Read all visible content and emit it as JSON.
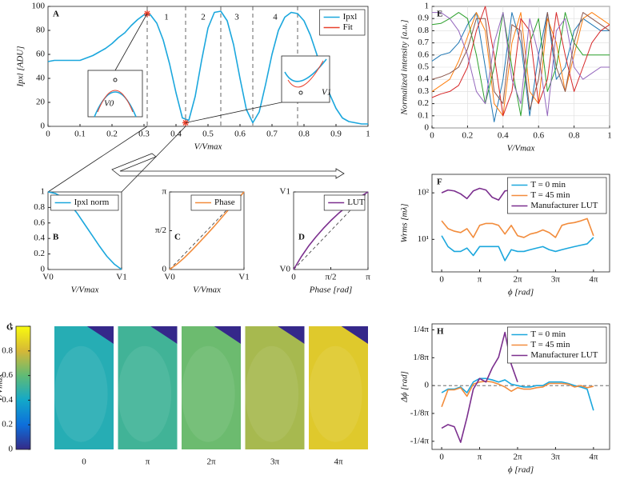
{
  "chart_data": [
    {
      "type": "line",
      "label": "A",
      "xlabel": "V/Vmax",
      "ylabel": "Ipxl [ADU]",
      "x": [
        0,
        0.02,
        0.04,
        0.06,
        0.08,
        0.1,
        0.12,
        0.14,
        0.16,
        0.18,
        0.2,
        0.22,
        0.24,
        0.26,
        0.28,
        0.3,
        0.32,
        0.34,
        0.36,
        0.38,
        0.4,
        0.42,
        0.44,
        0.46,
        0.48,
        0.5,
        0.52,
        0.54,
        0.56,
        0.58,
        0.6,
        0.62,
        0.64,
        0.66,
        0.68,
        0.7,
        0.72,
        0.74,
        0.76,
        0.78,
        0.8,
        0.82,
        0.84,
        0.86,
        0.88,
        0.9,
        0.92,
        0.94,
        0.96,
        0.98,
        1
      ],
      "series": [
        {
          "name": "Ipxl",
          "color": "#1ba7dd",
          "values": [
            54,
            55,
            55,
            55,
            55,
            55,
            57,
            59,
            62,
            65,
            69,
            74,
            78,
            84,
            89,
            93,
            93,
            86,
            72,
            52,
            28,
            7,
            5,
            25,
            55,
            82,
            95,
            96,
            88,
            68,
            40,
            14,
            3,
            12,
            35,
            60,
            80,
            91,
            95,
            94,
            88,
            76,
            60,
            42,
            27,
            15,
            7,
            4,
            3,
            2,
            2
          ]
        },
        {
          "name": "Fit",
          "color": "#e8412c",
          "marker": "star",
          "x": [
            0.31,
            0.43
          ],
          "values": [
            94,
            3
          ]
        }
      ],
      "xlim": [
        0,
        1
      ],
      "xticks": [
        0,
        0.1,
        0.2,
        0.3,
        0.4,
        0.5,
        0.6,
        0.7,
        0.8,
        0.9,
        1
      ],
      "ylim": [
        0,
        100
      ],
      "yticks": [
        0,
        20,
        40,
        60,
        80,
        100
      ],
      "vlines": [
        0.31,
        0.43,
        0.54,
        0.64,
        0.78
      ],
      "regions": [
        "1",
        "2",
        "3",
        "4"
      ],
      "inset_labels": [
        "V0",
        "V1"
      ],
      "legend": "upper right"
    },
    {
      "type": "line",
      "label": "E",
      "xlabel": "V/Vmax",
      "ylabel": "Normalized intensity [a.u.]",
      "x": [
        0,
        0.05,
        0.1,
        0.15,
        0.2,
        0.25,
        0.3,
        0.35,
        0.4,
        0.45,
        0.5,
        0.55,
        0.6,
        0.65,
        0.7,
        0.75,
        0.8,
        0.85,
        0.9,
        0.95,
        1
      ],
      "series": [
        {
          "color": "#1f77b4",
          "values": [
            0.55,
            0.6,
            0.62,
            0.7,
            0.85,
            0.95,
            0.5,
            0.05,
            0.4,
            0.95,
            0.7,
            0.1,
            0.6,
            0.95,
            0.4,
            0.5,
            0.8,
            0.9,
            0.85,
            0.8,
            0.8
          ]
        },
        {
          "color": "#ff7f0e",
          "values": [
            0.3,
            0.35,
            0.4,
            0.55,
            0.75,
            0.95,
            0.8,
            0.2,
            0.1,
            0.7,
            0.95,
            0.3,
            0.2,
            0.9,
            0.7,
            0.3,
            0.6,
            0.9,
            0.95,
            0.9,
            0.85
          ]
        },
        {
          "color": "#2ca02c",
          "values": [
            0.85,
            0.86,
            0.9,
            0.95,
            0.9,
            0.6,
            0.2,
            0.5,
            0.95,
            0.5,
            0.1,
            0.7,
            0.9,
            0.3,
            0.5,
            0.95,
            0.7,
            0.6,
            0.6,
            0.6,
            0.6
          ]
        },
        {
          "color": "#d62728",
          "values": [
            0.25,
            0.28,
            0.3,
            0.35,
            0.5,
            0.8,
            1.0,
            0.6,
            0.1,
            0.3,
            0.9,
            0.8,
            0.2,
            0.4,
            0.95,
            0.6,
            0.3,
            0.5,
            0.7,
            0.8,
            0.85
          ]
        },
        {
          "color": "#9467bd",
          "values": [
            0.95,
            0.95,
            0.9,
            0.8,
            0.6,
            0.3,
            0.2,
            0.7,
            0.95,
            0.4,
            0.2,
            0.9,
            0.6,
            0.1,
            0.8,
            0.9,
            0.5,
            0.4,
            0.45,
            0.5,
            0.5
          ]
        },
        {
          "color": "#8c564b",
          "values": [
            0.4,
            0.42,
            0.45,
            0.5,
            0.65,
            0.9,
            0.9,
            0.3,
            0.2,
            0.85,
            0.8,
            0.15,
            0.4,
            0.95,
            0.5,
            0.3,
            0.7,
            0.95,
            0.9,
            0.85,
            0.8
          ]
        }
      ],
      "xlim": [
        0,
        1
      ],
      "xticks": [
        0,
        0.2,
        0.4,
        0.6,
        0.8,
        1
      ],
      "ylim": [
        0,
        1
      ],
      "yticks": [
        0,
        0.1,
        0.2,
        0.3,
        0.4,
        0.5,
        0.6,
        0.7,
        0.8,
        0.9,
        1
      ],
      "grid": true
    },
    {
      "type": "line",
      "label": "B",
      "xlabel": "V/Vmax",
      "x": [
        0,
        0.1,
        0.2,
        0.3,
        0.4,
        0.5,
        0.6,
        0.7,
        0.8,
        0.9,
        1
      ],
      "series": [
        {
          "name": "Ipxl norm",
          "color": "#1ba7dd",
          "values": [
            1,
            0.98,
            0.93,
            0.84,
            0.72,
            0.58,
            0.44,
            0.3,
            0.17,
            0.07,
            0
          ]
        }
      ],
      "xlim": [
        0,
        1
      ],
      "xticks": [
        {
          "value": 0,
          "label": "V0"
        },
        {
          "value": 1,
          "label": "V1"
        }
      ],
      "ylim": [
        0,
        1
      ],
      "yticks": [
        0,
        0.2,
        0.4,
        0.6,
        0.8,
        1
      ],
      "legend": "upper right"
    },
    {
      "type": "line",
      "label": "C",
      "xlabel": "V/Vmax",
      "x": [
        0,
        0.1,
        0.2,
        0.3,
        0.4,
        0.5,
        0.6,
        0.7,
        0.8,
        0.9,
        1
      ],
      "series": [
        {
          "name": "Phase",
          "color": "#f28c3c",
          "values": [
            0,
            0.22,
            0.48,
            0.78,
            1.1,
            1.42,
            1.75,
            2.1,
            2.45,
            2.8,
            3.14
          ]
        }
      ],
      "xlim": [
        0,
        1
      ],
      "xticks": [
        {
          "value": 0,
          "label": "V0"
        },
        {
          "value": 1,
          "label": "V1"
        }
      ],
      "ylim": [
        0,
        3.1416
      ],
      "yticks": [
        0,
        {
          "value": 1.5708,
          "label": "π/2"
        },
        {
          "value": 3.1416,
          "label": "π"
        }
      ],
      "diagonal": true,
      "legend": "upper right"
    },
    {
      "type": "line",
      "label": "D",
      "xlabel": "Phase [rad]",
      "x": [
        0,
        0.314,
        0.628,
        0.942,
        1.257,
        1.571,
        1.885,
        2.199,
        2.513,
        2.827,
        3.142
      ],
      "series": [
        {
          "name": "LUT",
          "color": "#7b2f8e",
          "values": [
            0,
            0.16,
            0.3,
            0.42,
            0.53,
            0.63,
            0.72,
            0.8,
            0.87,
            0.94,
            1
          ]
        }
      ],
      "xlim": [
        0,
        3.1416
      ],
      "xticks": [
        0,
        {
          "value": 1.5708,
          "label": "π/2"
        },
        {
          "value": 3.1416,
          "label": "π"
        }
      ],
      "ylim": [
        0,
        1
      ],
      "yticks": [
        {
          "value": 0,
          "label": "V0"
        },
        {
          "value": 1,
          "label": "V1"
        }
      ],
      "diagonal": true,
      "legend": "upper right"
    },
    {
      "type": "line",
      "label": "F",
      "xlabel": "ϕ [rad]",
      "ylabel": "Wrms [mλ]",
      "yscale": "log",
      "x": [
        0,
        0.5236,
        1.0472,
        1.5708,
        2.0944,
        2.618,
        3.1416,
        3.6652,
        4.1888,
        4.7124,
        5.236,
        5.7596,
        6.2832,
        6.8068,
        7.3304,
        7.854,
        8.3776,
        8.9012,
        9.4248,
        9.9484,
        10.472,
        10.9956,
        11.5192,
        12.0428,
        12.5664
      ],
      "series": [
        {
          "name": "T = 0 min",
          "color": "#1ba7dd",
          "values": [
            12,
            7,
            5.5,
            5.5,
            6.5,
            4.5,
            7,
            7,
            7,
            7,
            3.5,
            6,
            5.5,
            5.5,
            6,
            6.5,
            7,
            6,
            5.5,
            6,
            6.5,
            7,
            7.5,
            8,
            11
          ]
        },
        {
          "name": "T = 45 min",
          "color": "#f28c3c",
          "values": [
            25,
            17,
            15,
            14,
            17,
            11,
            20,
            22,
            22,
            20,
            13,
            20,
            12,
            11,
            13,
            14,
            16,
            14,
            11,
            20,
            22,
            23,
            25,
            28,
            12
          ]
        },
        {
          "name": "Manufacturer LUT",
          "color": "#7b2f8e",
          "values": [
            100,
            115,
            110,
            95,
            75,
            110,
            125,
            115,
            80,
            70,
            110,
            115,
            100,
            null,
            null,
            null,
            null,
            null,
            null,
            null,
            null,
            null,
            null,
            null,
            null
          ]
        }
      ],
      "xlim": [
        -0.8,
        13.9
      ],
      "xticks": [
        0,
        {
          "value": 3.1416,
          "label": "π"
        },
        {
          "value": 6.2832,
          "label": "2π"
        },
        {
          "value": 9.4248,
          "label": "3π"
        },
        {
          "value": 12.5664,
          "label": "4π"
        }
      ],
      "ylim": [
        2,
        250
      ],
      "yticks": [
        {
          "value": 10,
          "label": "10¹"
        },
        {
          "value": 100,
          "label": "10²"
        }
      ],
      "legend": "upper right"
    },
    {
      "type": "heatmap",
      "label": "G",
      "ylabel": "V/Vmax",
      "categories": [
        "0",
        "π",
        "2π",
        "3π",
        "4π"
      ],
      "values": [
        0.45,
        0.52,
        0.62,
        0.72,
        0.85
      ],
      "ylim": [
        0,
        1
      ],
      "yticks": [
        0,
        0.2,
        0.4,
        0.6,
        0.8,
        1
      ]
    },
    {
      "type": "line",
      "label": "H",
      "xlabel": "ϕ [rad]",
      "ylabel": "Δϕ [rad]",
      "x": [
        0,
        0.5236,
        1.0472,
        1.5708,
        2.0944,
        2.618,
        3.1416,
        3.6652,
        4.1888,
        4.7124,
        5.236,
        5.7596,
        6.2832,
        6.8068,
        7.3304,
        7.854,
        8.3776,
        8.9012,
        9.4248,
        9.9484,
        10.472,
        10.9956,
        11.5192,
        12.0428,
        12.5664
      ],
      "series": [
        {
          "name": "T = 0 min",
          "color": "#1ba7dd",
          "values": [
            -0.1,
            -0.05,
            -0.05,
            -0.02,
            -0.1,
            0.05,
            0.1,
            0.1,
            0.08,
            0.05,
            0.08,
            0.02,
            0,
            -0.02,
            -0.02,
            0,
            0,
            0.05,
            0.05,
            0.05,
            0.03,
            0,
            -0.02,
            -0.05,
            -0.35
          ]
        },
        {
          "name": "T = 45 min",
          "color": "#f28c3c",
          "values": [
            -0.3,
            -0.06,
            -0.06,
            -0.03,
            -0.15,
            0.02,
            0.05,
            0.06,
            0.05,
            0.02,
            -0.02,
            -0.08,
            -0.03,
            -0.05,
            -0.05,
            -0.03,
            -0.02,
            0.03,
            0.03,
            0.03,
            0.02,
            -0.02,
            0,
            -0.03,
            -0.01
          ]
        },
        {
          "name": "Manufacturer LUT",
          "color": "#7b2f8e",
          "values": [
            -0.6,
            -0.55,
            -0.58,
            -0.8,
            -0.45,
            -0.05,
            0.1,
            0.05,
            0.25,
            0.4,
            0.75,
            0.3,
            0.05,
            null,
            null,
            null,
            null,
            null,
            null,
            null,
            null,
            null,
            null,
            null,
            null
          ]
        }
      ],
      "xlim": [
        -0.8,
        13.9
      ],
      "xticks": [
        0,
        {
          "value": 3.1416,
          "label": "π"
        },
        {
          "value": 6.2832,
          "label": "2π"
        },
        {
          "value": 9.4248,
          "label": "3π"
        },
        {
          "value": 12.5664,
          "label": "4π"
        }
      ],
      "ylim": [
        -0.9,
        0.87
      ],
      "yticks": [
        {
          "value": -0.7854,
          "label": "-1/4π"
        },
        {
          "value": -0.3927,
          "label": "-1/8π"
        },
        0,
        {
          "value": 0.3927,
          "label": "1/8π"
        },
        {
          "value": 0.7854,
          "label": "1/4π"
        }
      ],
      "hline": 0,
      "legend": "upper right"
    }
  ]
}
